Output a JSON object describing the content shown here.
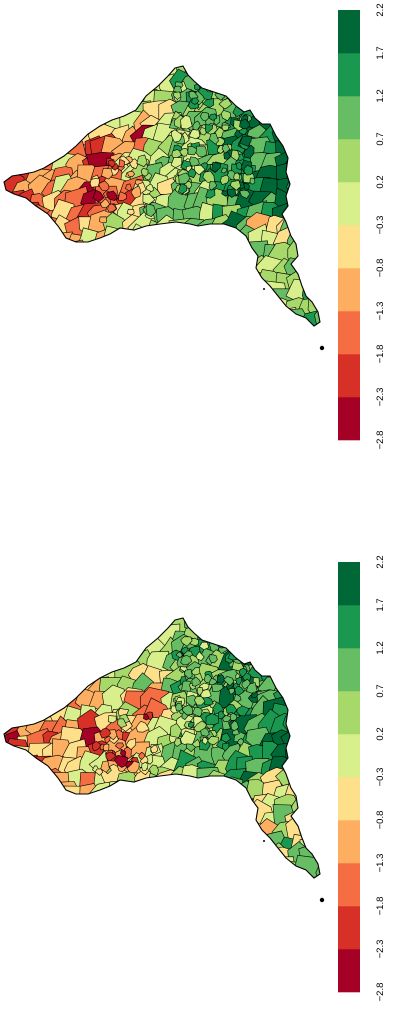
{
  "panels": [
    {
      "legend": {
        "ticks": [
          "−2.8",
          "−2.3",
          "−1.8",
          "−1.3",
          "−0.8",
          "−0.3",
          "0.2",
          "0.7",
          "1.2",
          "1.7",
          "2.2"
        ],
        "colors": [
          "#a50026",
          "#d73027",
          "#f46d43",
          "#fdae61",
          "#fee08b",
          "#d9ef8b",
          "#a6d96a",
          "#66bd63",
          "#1a9850",
          "#006837"
        ]
      }
    },
    {
      "legend": {
        "ticks": [
          "−2.8",
          "−2.3",
          "−1.8",
          "−1.3",
          "−0.8",
          "−0.3",
          "0.2",
          "0.7",
          "1.2",
          "1.7",
          "2.2"
        ],
        "colors": [
          "#a50026",
          "#d73027",
          "#f46d43",
          "#fdae61",
          "#fee08b",
          "#d9ef8b",
          "#a6d96a",
          "#66bd63",
          "#1a9850",
          "#006837"
        ]
      }
    }
  ]
}
